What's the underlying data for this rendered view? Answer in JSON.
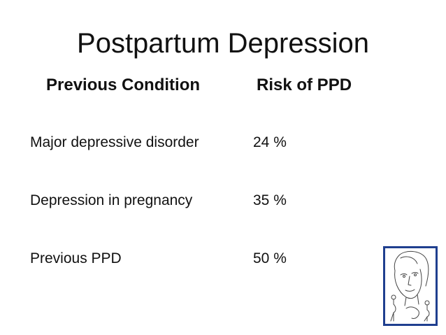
{
  "slide": {
    "title": "Postpartum Depression",
    "header": {
      "condition": "Previous Condition",
      "risk": "Risk of PPD"
    },
    "rows": [
      {
        "condition": "Major depressive disorder",
        "risk": "24 %"
      },
      {
        "condition": "Depression in pregnancy",
        "risk": "35 %"
      },
      {
        "condition": "Previous PPD",
        "risk": "50 %"
      }
    ]
  },
  "illustration": {
    "icon": "pregnant-woman-face-sketch-icon",
    "border_color": "#1f3f8f"
  }
}
